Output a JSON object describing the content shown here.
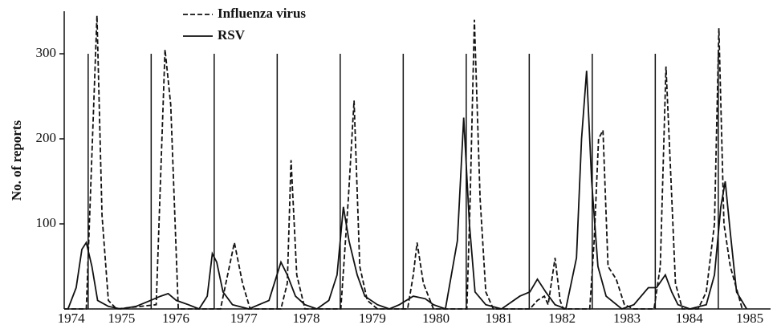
{
  "chart_data": {
    "type": "line",
    "y_label": "No. of reports",
    "legend": "top",
    "xlim": [
      1974.62,
      1985.83
    ],
    "ylim": [
      0,
      350
    ],
    "yticks": [
      100,
      200,
      300
    ],
    "xticks": [
      {
        "value": 1974.73,
        "label": "1974"
      },
      {
        "value": 1975.53,
        "label": "1975"
      },
      {
        "value": 1976.39,
        "label": "1976"
      },
      {
        "value": 1977.47,
        "label": "1977"
      },
      {
        "value": 1978.46,
        "label": "1978"
      },
      {
        "value": 1979.51,
        "label": "1979"
      },
      {
        "value": 1980.52,
        "label": "1980"
      },
      {
        "value": 1981.52,
        "label": "1981"
      },
      {
        "value": 1982.52,
        "label": "1982"
      },
      {
        "value": 1983.55,
        "label": "1983"
      },
      {
        "value": 1984.54,
        "label": "1984"
      },
      {
        "value": 1985.5,
        "label": "1985"
      }
    ],
    "vlines": [
      1975,
      1976,
      1977,
      1978,
      1979,
      1980,
      1981,
      1982,
      1983,
      1984,
      1985
    ],
    "vline_height": 300,
    "series": [
      {
        "name": "Influenza virus",
        "color": "#111111",
        "dash": true,
        "x": [
          1974.62,
          1974.97,
          1975.14,
          1975.22,
          1975.32,
          1975.45,
          1976.08,
          1976.22,
          1976.31,
          1976.43,
          1977.1,
          1977.32,
          1977.45,
          1977.57,
          1978.06,
          1978.16,
          1978.22,
          1978.31,
          1978.44,
          1979.01,
          1979.13,
          1979.22,
          1979.31,
          1979.43,
          1979.59,
          1980.07,
          1980.16,
          1980.22,
          1980.32,
          1980.48,
          1981.01,
          1981.06,
          1981.13,
          1981.22,
          1981.31,
          1981.43,
          1982.01,
          1982.13,
          1982.24,
          1982.3,
          1982.41,
          1982.49,
          1982.54,
          1982.96,
          1983.03,
          1983.1,
          1983.17,
          1983.25,
          1983.38,
          1983.51,
          1983.66,
          1983.98,
          1984.08,
          1984.17,
          1984.25,
          1984.32,
          1984.43,
          1984.68,
          1984.81,
          1984.94,
          1985.01,
          1985.09,
          1985.19,
          1985.38
        ],
        "values": [
          0,
          0,
          345,
          110,
          10,
          0,
          5,
          305,
          240,
          0,
          0,
          78,
          30,
          0,
          0,
          30,
          175,
          40,
          0,
          0,
          130,
          245,
          50,
          10,
          0,
          0,
          40,
          78,
          30,
          0,
          0,
          120,
          340,
          130,
          20,
          0,
          0,
          10,
          15,
          5,
          60,
          10,
          0,
          0,
          80,
          200,
          210,
          50,
          35,
          5,
          0,
          0,
          50,
          285,
          150,
          30,
          0,
          0,
          20,
          100,
          330,
          100,
          50,
          0
        ]
      },
      {
        "name": "RSV",
        "color": "#111111",
        "dash": false,
        "x": [
          1974.68,
          1974.81,
          1974.9,
          1974.97,
          1975.06,
          1975.15,
          1975.32,
          1975.51,
          1975.76,
          1975.99,
          1976.15,
          1976.27,
          1976.4,
          1976.59,
          1976.76,
          1976.89,
          1976.97,
          1977.04,
          1977.14,
          1977.29,
          1977.55,
          1977.87,
          1978.06,
          1978.16,
          1978.29,
          1978.44,
          1978.63,
          1978.82,
          1978.95,
          1979.05,
          1979.14,
          1979.27,
          1979.39,
          1979.59,
          1979.78,
          1979.94,
          1980.16,
          1980.35,
          1980.48,
          1980.67,
          1980.86,
          1980.96,
          1981.05,
          1981.14,
          1981.31,
          1981.56,
          1981.85,
          1982.01,
          1982.13,
          1982.26,
          1982.41,
          1982.58,
          1982.75,
          1982.83,
          1982.91,
          1982.99,
          1983.09,
          1983.22,
          1983.47,
          1983.66,
          1983.89,
          1984.02,
          1984.16,
          1984.26,
          1984.36,
          1984.55,
          1984.81,
          1984.94,
          1985.04,
          1985.11,
          1985.19,
          1985.29,
          1985.45
        ],
        "values": [
          0,
          25,
          70,
          78,
          50,
          10,
          3,
          0,
          3,
          10,
          15,
          18,
          10,
          5,
          0,
          15,
          65,
          55,
          20,
          5,
          0,
          10,
          55,
          40,
          15,
          5,
          0,
          10,
          40,
          120,
          80,
          40,
          15,
          5,
          0,
          5,
          15,
          12,
          5,
          0,
          80,
          225,
          100,
          20,
          5,
          0,
          15,
          20,
          35,
          20,
          5,
          0,
          60,
          200,
          280,
          150,
          50,
          15,
          0,
          5,
          25,
          25,
          40,
          20,
          5,
          0,
          5,
          40,
          120,
          150,
          90,
          20,
          0
        ]
      }
    ]
  }
}
